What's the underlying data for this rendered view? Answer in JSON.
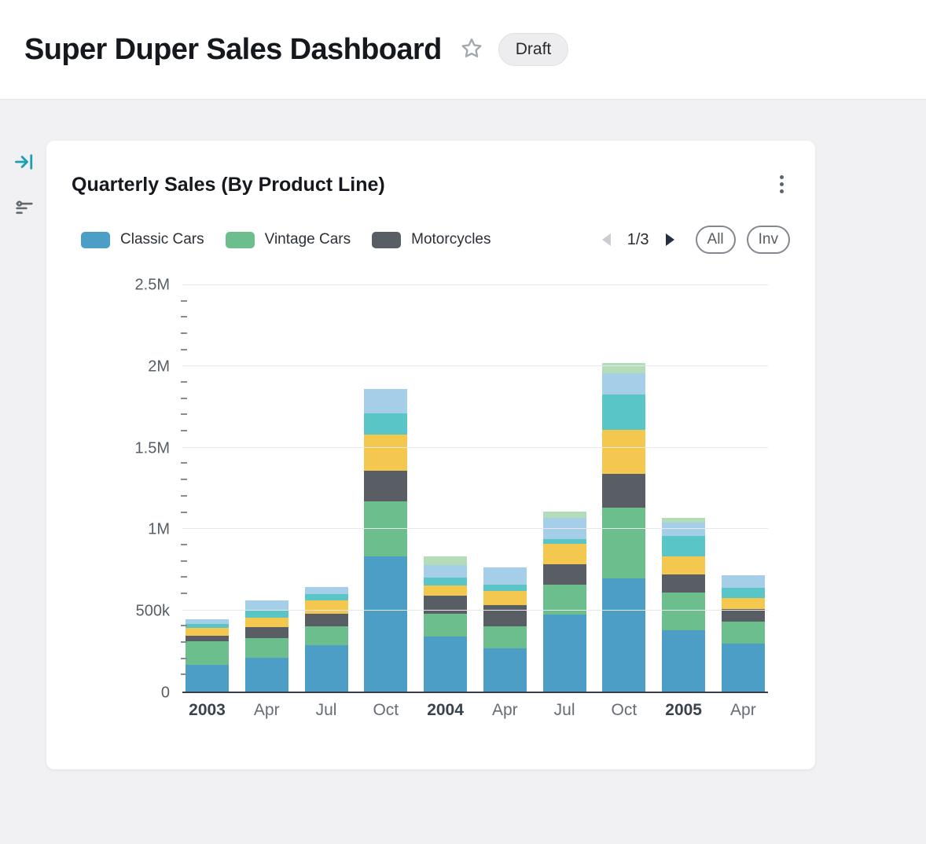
{
  "header": {
    "title": "Super Duper Sales Dashboard",
    "badge": "Draft"
  },
  "icons": {
    "star": "star-outline",
    "collapse_panel": "arrow-right-to-line",
    "filter": "filter-lines",
    "kebab_menu": "vertical-ellipsis",
    "pager_prev": "triangle-left",
    "pager_next": "triangle-right"
  },
  "card": {
    "title": "Quarterly Sales (By Product Line)",
    "legend_pagination": {
      "current": "1/3"
    },
    "buttons": {
      "all": "All",
      "inv": "Inv"
    }
  },
  "chart_data": {
    "type": "bar",
    "stacked": true,
    "title": "Quarterly Sales (By Product Line)",
    "categories": [
      "2003",
      "Apr",
      "Jul",
      "Oct",
      "2004",
      "Apr",
      "Jul",
      "Oct",
      "2005",
      "Apr"
    ],
    "emphasized_categories": [
      "2003",
      "2004",
      "2005"
    ],
    "legend_page": "1/3",
    "legend_visible_series": [
      "Classic Cars",
      "Vintage Cars",
      "Motorcycles"
    ],
    "series": [
      {
        "name": "Classic Cars",
        "color": "#4d9ec6",
        "values": [
          165000,
          210000,
          285000,
          830000,
          340000,
          265000,
          475000,
          695000,
          375000,
          295000
        ]
      },
      {
        "name": "Vintage Cars",
        "color": "#6cbe8c",
        "values": [
          145000,
          120000,
          115000,
          340000,
          140000,
          135000,
          185000,
          435000,
          235000,
          135000
        ]
      },
      {
        "name": "Motorcycles",
        "color": "#595e64",
        "values": [
          35000,
          65000,
          80000,
          190000,
          110000,
          130000,
          125000,
          210000,
          110000,
          80000
        ]
      },
      {
        "name": "Unlabeled (yellow)",
        "color": "#f4c84e",
        "values": [
          45000,
          60000,
          80000,
          220000,
          65000,
          90000,
          125000,
          270000,
          110000,
          65000
        ]
      },
      {
        "name": "Unlabeled (teal)",
        "color": "#59c5c7",
        "values": [
          25000,
          50000,
          40000,
          130000,
          45000,
          40000,
          30000,
          220000,
          130000,
          65000
        ]
      },
      {
        "name": "Unlabeled (light blue)",
        "color": "#a5cee8",
        "values": [
          30000,
          55000,
          45000,
          150000,
          80000,
          105000,
          130000,
          130000,
          80000,
          75000
        ]
      },
      {
        "name": "Unlabeled (light green)",
        "color": "#b4dcb9",
        "values": [
          0,
          0,
          0,
          0,
          50000,
          0,
          40000,
          60000,
          30000,
          0
        ]
      }
    ],
    "y_ticks": [
      {
        "label": "0",
        "value": 0
      },
      {
        "label": "500k",
        "value": 500000
      },
      {
        "label": "1M",
        "value": 1000000
      },
      {
        "label": "1.5M",
        "value": 1500000
      },
      {
        "label": "2M",
        "value": 2000000
      },
      {
        "label": "2.5M",
        "value": 2500000
      }
    ],
    "ylim": [
      0,
      2500000
    ],
    "minor_tick_step": 100000,
    "grid": true,
    "legend_position": "top"
  },
  "colors": {
    "page_bg": "#f1f1f3",
    "card_bg": "#ffffff",
    "accent_teal": "#1aa0b2",
    "gridline": "#e8e8eb",
    "axis_line": "#3a4047",
    "pager_next": "#233040",
    "pager_prev": "#c9ccd0"
  }
}
